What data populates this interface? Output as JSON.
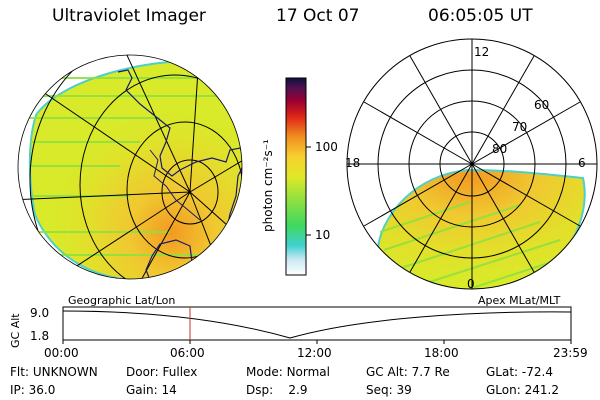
{
  "header": {
    "title": "Ultraviolet Imager",
    "date": "17 Oct 07",
    "time": "06:05:05 UT"
  },
  "colorbar": {
    "label": "photon cm⁻²s⁻¹",
    "ticks": [
      "100",
      "10"
    ]
  },
  "polar": {
    "mlt_labels": {
      "top": "12",
      "left": "18",
      "right": "6",
      "bottom": "0"
    },
    "lat_labels": [
      "60",
      "70",
      "80"
    ]
  },
  "timeline": {
    "left_caption": "Geographic Lat/Lon",
    "right_caption": "Apex MLat/MLT",
    "axis_label": "GC Alt",
    "y_max": "9.0",
    "y_min": "1.8",
    "time_ticks": [
      "00:00",
      "06:00",
      "12:00",
      "18:00",
      "23:59"
    ]
  },
  "status": {
    "row1": [
      {
        "label": "Flt:",
        "value": "UNKNOWN"
      },
      {
        "label": "Door:",
        "value": "Fullex"
      },
      {
        "label": "Mode:",
        "value": "Normal"
      },
      {
        "label": "GC Alt:",
        "value": "7.7 Re"
      },
      {
        "label": "GLat:",
        "value": "-72.4"
      }
    ],
    "row2": [
      {
        "label": "IP:",
        "value": "36.0"
      },
      {
        "label": "Gain:",
        "value": "14"
      },
      {
        "label": "Dsp:",
        "value": "2.9"
      },
      {
        "label": "Seq:",
        "value": "39"
      },
      {
        "label": "GLon:",
        "value": "241.2"
      }
    ]
  },
  "colors": {
    "fill_main": "#d8ea2a",
    "fill_warm": "#f0c830",
    "fill_orange": "#f29a22",
    "stripe_green": "#8ee040",
    "edge_cyan": "#4ed0c8",
    "marker_red": "#c83228"
  }
}
